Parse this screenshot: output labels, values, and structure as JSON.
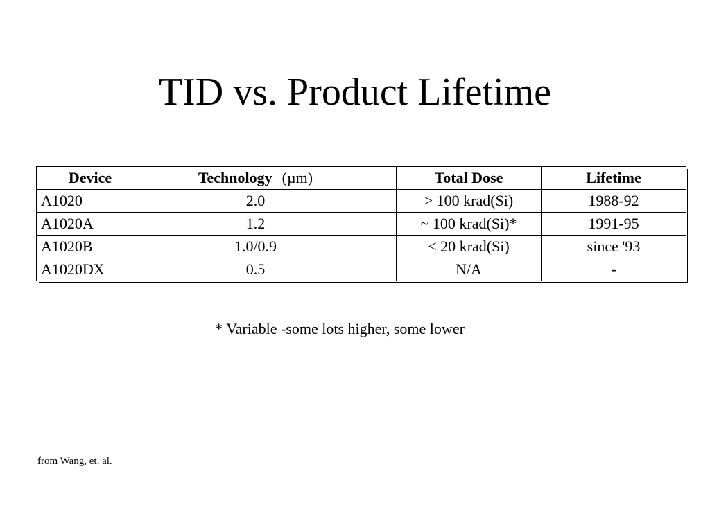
{
  "title": "TID vs. Product Lifetime",
  "table": {
    "header": [
      "Device",
      "Technology",
      "Total Dose",
      "Lifetime"
    ],
    "technology_unit": "(µm)",
    "rows": [
      [
        "A1020",
        "2.0",
        "> 100 krad(Si)",
        "1988-92"
      ],
      [
        "A1020A",
        "1.2",
        "~ 100 krad(Si)*",
        "1991-95"
      ],
      [
        "A1020B",
        "1.0/0.9",
        "< 20 krad(Si)",
        "since '93"
      ],
      [
        "A1020DX",
        "0.5",
        "N/A",
        "-"
      ]
    ]
  },
  "footnote": "* Variable -some lots higher, some lower",
  "source": "from Wang, et. al."
}
